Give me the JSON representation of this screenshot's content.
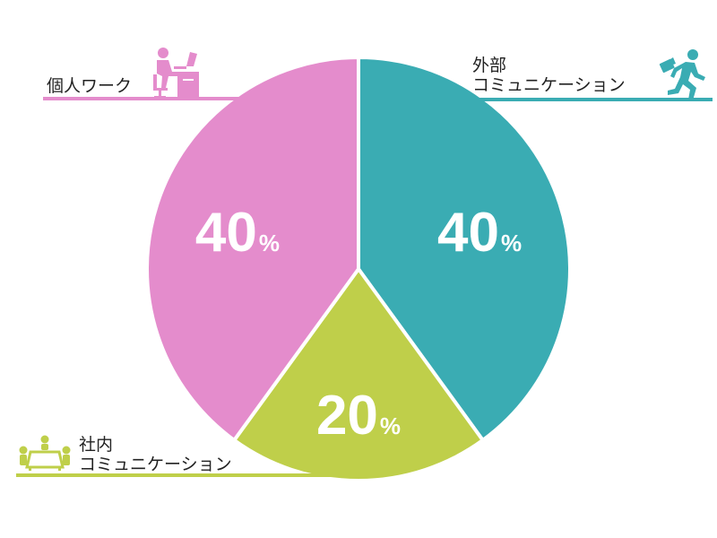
{
  "chart_data": {
    "type": "pie",
    "title": "",
    "unit": "%",
    "categories": [
      "外部\nコミュニケーション",
      "社内\nコミュニケーション",
      "個人ワーク"
    ],
    "values": [
      40,
      20,
      40
    ],
    "value_labels": [
      "40",
      "20",
      "40"
    ],
    "colors": [
      "#3aacb3",
      "#bfcf4a",
      "#e48ccc"
    ],
    "slice_border_color": "#ffffff",
    "start": "top",
    "direction": "clockwise"
  },
  "labels": {
    "external": {
      "line1": "外部",
      "line2": "コミュニケーション"
    },
    "internal": {
      "line1": "社内",
      "line2": "コミュニケーション"
    },
    "individual": {
      "line1": "個人ワーク"
    }
  },
  "icons": {
    "external": "running-businessman-icon",
    "internal": "meeting-table-icon",
    "individual": "desk-worker-icon"
  }
}
